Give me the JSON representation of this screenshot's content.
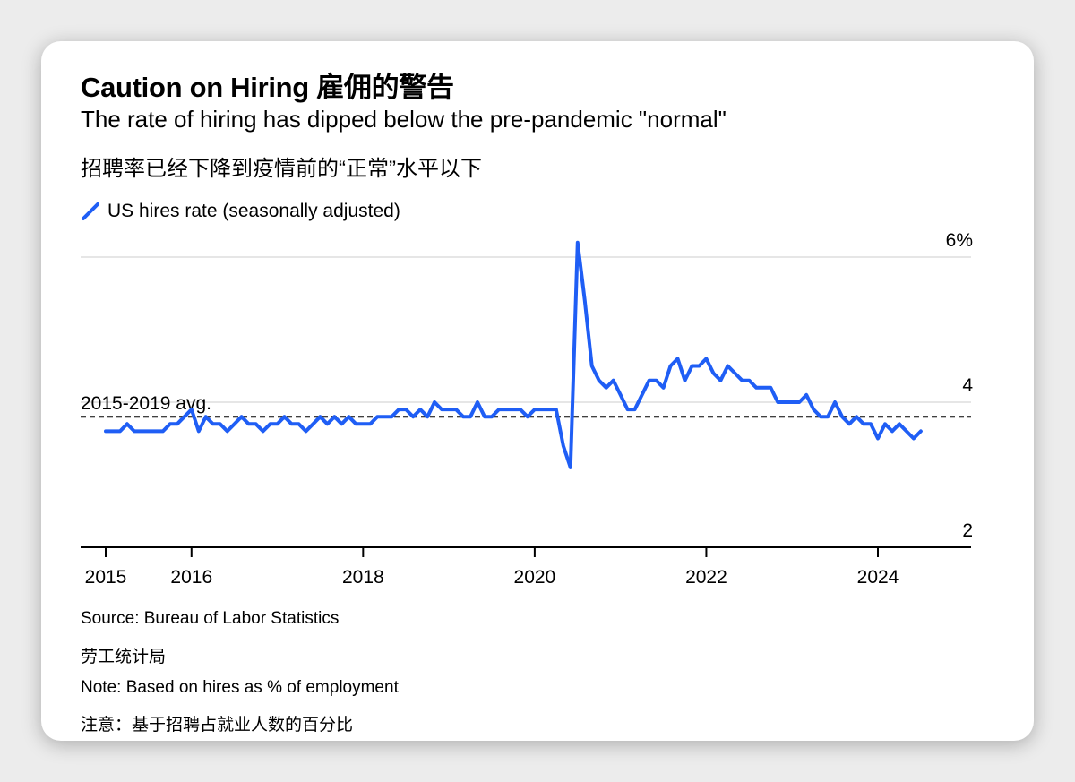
{
  "title": "Caution on Hiring 雇佣的警告",
  "subtitle": "The rate of hiring has dipped below the pre-pandemic \"normal\"",
  "subtitle_zh": "招聘率已经下降到疫情前的“正常”水平以下",
  "source": "Source: Bureau of Labor Statistics",
  "source_zh": "劳工统计局",
  "note": "Note: Based on hires as % of employment",
  "note_zh": "注意：基于招聘占就业人数的百分比",
  "colors": {
    "series": "#1f5ef5",
    "grid": "#e6e6e6",
    "axis": "#000000"
  },
  "chart_data": {
    "type": "line",
    "legend": "US hires rate (seasonally adjusted)",
    "legend_placement": "top-left",
    "y_unit": "%",
    "ylim": [
      2,
      6
    ],
    "y_ticks": [
      {
        "value": 6,
        "label": "6%"
      },
      {
        "value": 4,
        "label": "4"
      },
      {
        "value": 2,
        "label": "2"
      }
    ],
    "x_ticks": [
      {
        "value": 2015,
        "label": "2015"
      },
      {
        "value": 2016,
        "label": "2016"
      },
      {
        "value": 2018,
        "label": "2018"
      },
      {
        "value": 2020,
        "label": "2020"
      },
      {
        "value": 2022,
        "label": "2022"
      },
      {
        "value": 2024,
        "label": "2024"
      }
    ],
    "grid": "horizontal",
    "reference_line": {
      "label": "2015-2019 avg.",
      "value": 3.8
    },
    "series": [
      {
        "name": "US hires rate (seasonally adjusted)",
        "start": "2015-01",
        "frequency": "monthly",
        "values": [
          3.6,
          3.6,
          3.6,
          3.7,
          3.6,
          3.6,
          3.6,
          3.6,
          3.6,
          3.7,
          3.7,
          3.8,
          3.9,
          3.6,
          3.8,
          3.7,
          3.7,
          3.6,
          3.7,
          3.8,
          3.7,
          3.7,
          3.6,
          3.7,
          3.7,
          3.8,
          3.7,
          3.7,
          3.6,
          3.7,
          3.8,
          3.7,
          3.8,
          3.7,
          3.8,
          3.7,
          3.7,
          3.7,
          3.8,
          3.8,
          3.8,
          3.9,
          3.9,
          3.8,
          3.9,
          3.8,
          4.0,
          3.9,
          3.9,
          3.9,
          3.8,
          3.8,
          4.0,
          3.8,
          3.8,
          3.9,
          3.9,
          3.9,
          3.9,
          3.8,
          3.9,
          3.9,
          3.9,
          3.9,
          3.4,
          3.1,
          6.2,
          5.4,
          4.5,
          4.3,
          4.2,
          4.3,
          4.1,
          3.9,
          3.9,
          4.1,
          4.3,
          4.3,
          4.2,
          4.5,
          4.6,
          4.3,
          4.5,
          4.5,
          4.6,
          4.4,
          4.3,
          4.5,
          4.4,
          4.3,
          4.3,
          4.2,
          4.2,
          4.2,
          4.0,
          4.0,
          4.0,
          4.0,
          4.1,
          3.9,
          3.8,
          3.8,
          4.0,
          3.8,
          3.7,
          3.8,
          3.7,
          3.7,
          3.5,
          3.7,
          3.6,
          3.7,
          3.6,
          3.5,
          3.6
        ]
      }
    ]
  }
}
